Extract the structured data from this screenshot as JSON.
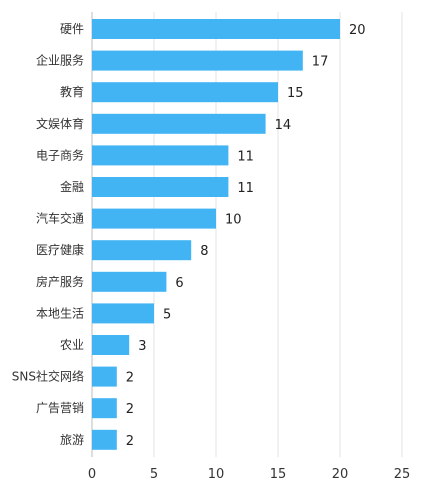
{
  "chart_data": {
    "type": "bar",
    "orientation": "horizontal",
    "categories": [
      "硬件",
      "企业服务",
      "教育",
      "文娱体育",
      "电子商务",
      "金融",
      "汽车交通",
      "医疗健康",
      "房产服务",
      "本地生活",
      "农业",
      "SNS社交网络",
      "广告营销",
      "旅游"
    ],
    "values": [
      20,
      17,
      15,
      14,
      11,
      11,
      10,
      8,
      6,
      5,
      3,
      2,
      2,
      2
    ],
    "value_labels": [
      "20",
      "17",
      "15",
      "14",
      "11",
      "11",
      "10",
      "8",
      "6",
      "5",
      "3",
      "2",
      "2",
      "2"
    ],
    "xticks": [
      0,
      5,
      10,
      15,
      20,
      25
    ],
    "xtick_labels": [
      "0",
      "5",
      "10",
      "15",
      "20",
      "25"
    ],
    "xlim": [
      0,
      25
    ],
    "grid": true,
    "bar_color": "#42b4f4",
    "title": "",
    "xlabel": "",
    "ylabel": ""
  }
}
